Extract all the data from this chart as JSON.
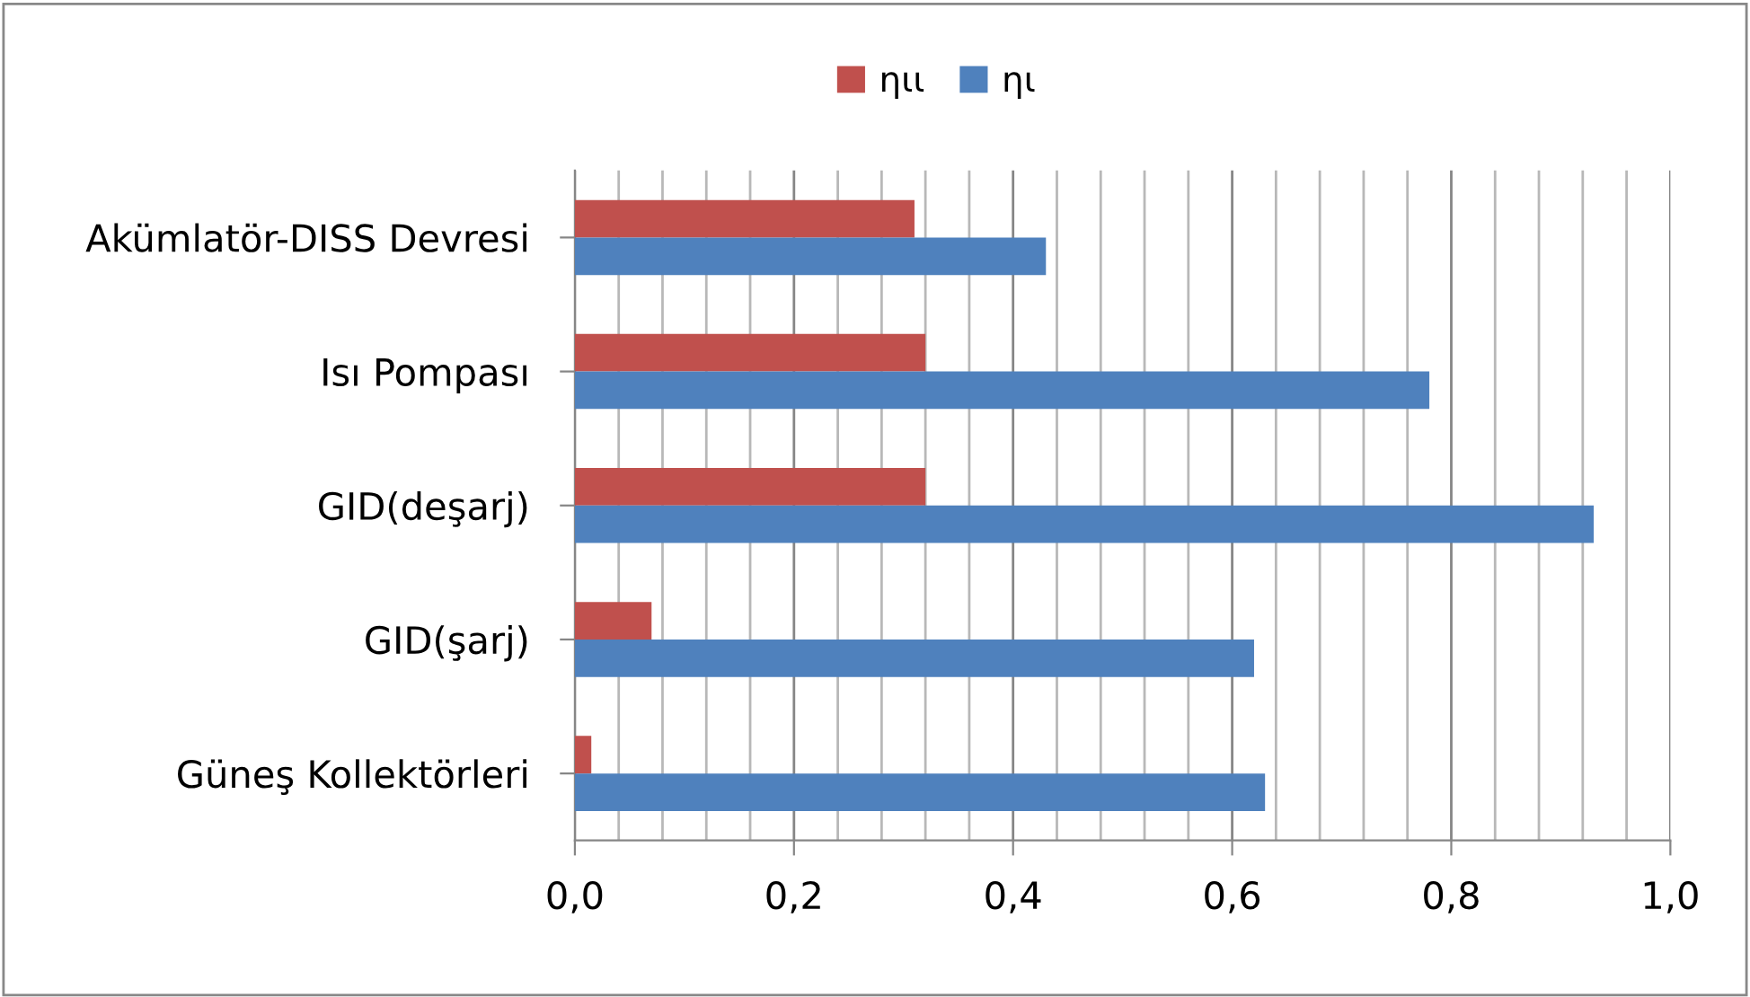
{
  "chart_data": {
    "type": "bar",
    "orientation": "horizontal",
    "categories": [
      "Akümlatör-DISS Devresi",
      "Isı Pompası",
      "GID(deşarj)",
      "GID(şarj)",
      "Güneş Kollektörleri"
    ],
    "series": [
      {
        "name": "ηιι",
        "color": "#c0504d",
        "values": [
          0.31,
          0.32,
          0.32,
          0.07,
          0.015
        ]
      },
      {
        "name": "ηι",
        "color": "#4f81bd",
        "values": [
          0.43,
          0.78,
          0.93,
          0.62,
          0.63
        ]
      }
    ],
    "xlim": [
      0,
      1.0
    ],
    "xticks": [
      {
        "value": 0,
        "label": "0,0"
      },
      {
        "value": 0.04,
        "label": null
      },
      {
        "value": 0.08,
        "label": null
      },
      {
        "value": 0.12,
        "label": null
      },
      {
        "value": 0.16,
        "label": null
      },
      {
        "value": 0.2,
        "label": "0,2"
      },
      {
        "value": 0.24,
        "label": null
      },
      {
        "value": 0.28,
        "label": null
      },
      {
        "value": 0.32,
        "label": null
      },
      {
        "value": 0.36,
        "label": null
      },
      {
        "value": 0.4,
        "label": "0,4"
      },
      {
        "value": 0.44,
        "label": null
      },
      {
        "value": 0.48,
        "label": null
      },
      {
        "value": 0.52,
        "label": null
      },
      {
        "value": 0.56,
        "label": null
      },
      {
        "value": 0.6,
        "label": "0,6"
      },
      {
        "value": 0.64,
        "label": null
      },
      {
        "value": 0.68,
        "label": null
      },
      {
        "value": 0.72,
        "label": null
      },
      {
        "value": 0.76,
        "label": null
      },
      {
        "value": 0.8,
        "label": "0,8"
      },
      {
        "value": 0.84,
        "label": null
      },
      {
        "value": 0.88,
        "label": null
      },
      {
        "value": 0.92,
        "label": null
      },
      {
        "value": 0.96,
        "label": null
      },
      {
        "value": 1.0,
        "label": "1,0"
      }
    ],
    "grid": "x",
    "legend": "top"
  }
}
